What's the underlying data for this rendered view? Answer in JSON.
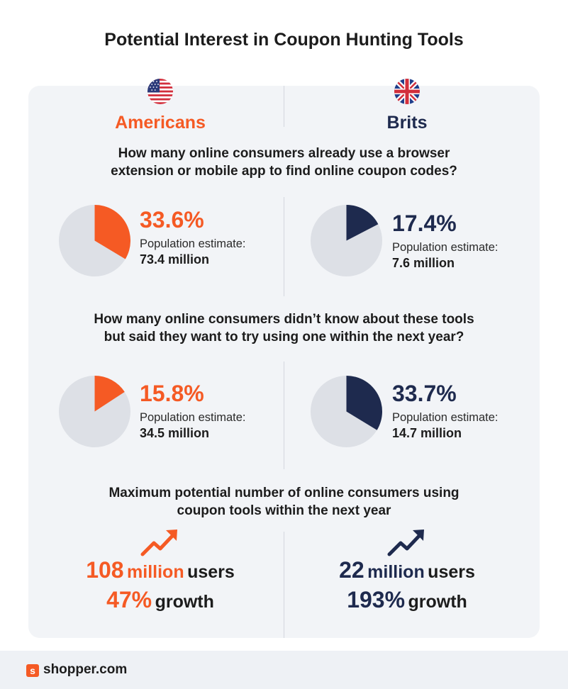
{
  "title": "Potential Interest in Coupon Hunting Tools",
  "colors": {
    "americans": "#f55a24",
    "brits": "#1e2a4e",
    "pie_bg": "#dde0e6",
    "panel": "#f2f4f7"
  },
  "columns": [
    {
      "country": "Americans",
      "flag_icon": "us-flag-icon"
    },
    {
      "country": "Brits",
      "flag_icon": "uk-flag-icon"
    }
  ],
  "sections": [
    {
      "question": [
        "How many online consumers already use a browser",
        "extension or mobile app to find online coupon codes?"
      ],
      "stats": [
        {
          "percent_label": "33.6%",
          "estimate_label": "Population estimate:",
          "estimate_value": "73.4 million"
        },
        {
          "percent_label": "17.4%",
          "estimate_label": "Population estimate:",
          "estimate_value": "7.6 million"
        }
      ]
    },
    {
      "question": [
        "How many online consumers didn’t know about these tools",
        "but said they want to try using one within the next year?"
      ],
      "stats": [
        {
          "percent_label": "15.8%",
          "estimate_label": "Population estimate:",
          "estimate_value": "34.5 million"
        },
        {
          "percent_label": "33.7%",
          "estimate_label": "Population estimate:",
          "estimate_value": "14.7 million"
        }
      ]
    }
  ],
  "max_section": {
    "question": [
      "Maximum potential number of online consumers using",
      "coupon tools within the next year"
    ],
    "items": [
      {
        "number": "108",
        "unit": "million",
        "suffix": "users",
        "growth_pct": "47%",
        "growth_label": "growth",
        "icon": "trend-up-arrow-icon"
      },
      {
        "number": "22",
        "unit": "million",
        "suffix": "users",
        "growth_pct": "193%",
        "growth_label": "growth",
        "icon": "trend-up-arrow-icon"
      }
    ]
  },
  "chart_data": [
    {
      "type": "pie",
      "title": "",
      "categories": [
        "Americans",
        "Brits"
      ],
      "values": [
        33.6,
        17.4
      ],
      "unit": "%"
    },
    {
      "type": "pie",
      "title": "",
      "categories": [
        "Americans",
        "Brits"
      ],
      "values": [
        15.8,
        33.7
      ],
      "unit": "%"
    }
  ],
  "footer": {
    "logo_letter": "s",
    "brand": "shopper.com"
  }
}
